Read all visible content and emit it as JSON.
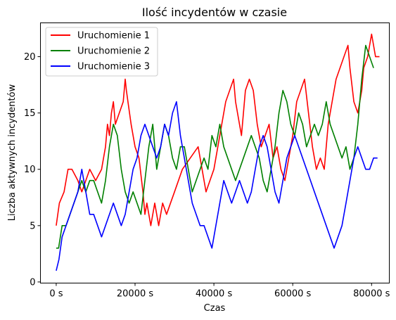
{
  "chart_data": {
    "type": "line",
    "title": "Ilość incydentów w czasie",
    "xlabel": "Czas",
    "ylabel": "Liczba aktywnych incydentów",
    "xlim": [
      -4000,
      84500
    ],
    "ylim": [
      -0.1,
      23
    ],
    "x_ticks": [
      0,
      20000,
      40000,
      60000,
      80000
    ],
    "x_tick_labels": [
      "0 s",
      "20000 s",
      "40000 s",
      "60000 s",
      "80000 s"
    ],
    "y_ticks": [
      0,
      5,
      10,
      15,
      20
    ],
    "y_tick_labels": [
      "0",
      "5",
      "10",
      "15",
      "20"
    ],
    "grid": false,
    "legend_position": "top-left",
    "series": [
      {
        "name": "Uruchomienie 1",
        "color": "#ff0000",
        "x": [
          0,
          800,
          2000,
          3000,
          4000,
          5500,
          6500,
          7500,
          8500,
          10000,
          11500,
          12500,
          13000,
          13500,
          14000,
          14500,
          15000,
          16000,
          17000,
          17500,
          17800,
          18200,
          19000,
          20000,
          21000,
          22000,
          22500,
          23000,
          24000,
          25000,
          26000,
          27000,
          28000,
          29000,
          30000,
          32000,
          34000,
          36000,
          37000,
          38000,
          39000,
          40000,
          41000,
          42000,
          43000,
          44000,
          45000,
          45500,
          46500,
          47000,
          48000,
          49000,
          50000,
          51000,
          52000,
          53000,
          54000,
          55000,
          56000,
          57000,
          58000,
          59000,
          60000,
          61000,
          62000,
          63000,
          64000,
          65000,
          66000,
          67000,
          68000,
          69000,
          70000,
          71000,
          72000,
          73000,
          74000,
          74500,
          75500,
          76500,
          77500,
          78000,
          79000,
          79500,
          80000,
          80500,
          81000,
          82000
        ],
        "y": [
          5,
          7,
          8,
          10,
          10,
          9,
          8,
          9,
          10,
          9,
          10,
          12,
          14,
          13,
          15,
          16,
          14,
          15,
          16,
          18,
          17,
          16,
          14,
          12,
          11,
          8,
          6,
          7,
          5,
          7,
          5,
          7,
          6,
          7,
          8,
          10,
          11,
          12,
          10,
          8,
          9,
          10,
          12,
          14,
          16,
          17,
          18,
          16,
          14,
          13,
          17,
          18,
          17,
          14,
          12,
          13,
          14,
          11,
          12,
          10,
          9,
          11,
          13,
          16,
          17,
          18,
          15,
          12,
          10,
          11,
          10,
          14,
          16,
          18,
          19,
          20,
          21,
          19,
          16,
          15,
          17,
          19,
          20,
          21,
          22,
          21,
          20,
          20
        ]
      },
      {
        "name": "Uruchomienie 2",
        "color": "#008000",
        "x": [
          0,
          600,
          1500,
          2500,
          3500,
          4500,
          5500,
          6500,
          7500,
          8500,
          9500,
          10500,
          11500,
          12500,
          13500,
          14500,
          15500,
          16500,
          17500,
          18500,
          19500,
          20500,
          21500,
          22500,
          23500,
          24500,
          25500,
          26500,
          27500,
          28500,
          29500,
          30500,
          31500,
          32500,
          33500,
          34500,
          35500,
          36500,
          37500,
          38500,
          39500,
          40500,
          41500,
          42500,
          43500,
          44500,
          45500,
          46500,
          47500,
          48500,
          49500,
          50500,
          51500,
          52500,
          53500,
          54500,
          55500,
          56500,
          57500,
          58500,
          59500,
          60500,
          61500,
          62500,
          63500,
          64500,
          65500,
          66500,
          67500,
          68500,
          69500,
          70500,
          71500,
          72500,
          73500,
          74500,
          75500,
          76500,
          77500,
          78500,
          79500,
          80500
        ],
        "y": [
          3,
          3,
          5,
          5,
          6,
          7,
          8,
          9,
          8,
          9,
          9,
          8,
          7,
          9,
          12,
          14,
          13,
          10,
          8,
          7,
          8,
          7,
          6,
          9,
          12,
          14,
          10,
          12,
          14,
          13,
          11,
          10,
          12,
          12,
          10,
          8,
          9,
          10,
          11,
          10,
          13,
          12,
          14,
          12,
          11,
          10,
          9,
          10,
          11,
          12,
          13,
          12,
          11,
          9,
          8,
          10,
          12,
          15,
          17,
          16,
          14,
          13,
          15,
          14,
          12,
          13,
          14,
          13,
          14,
          16,
          14,
          13,
          12,
          11,
          12,
          10,
          11,
          14,
          18,
          21,
          20,
          19
        ]
      },
      {
        "name": "Uruchomienie 3",
        "color": "#0000ff",
        "x": [
          0,
          700,
          1500,
          2500,
          3500,
          4500,
          5500,
          6500,
          7500,
          8500,
          9500,
          10500,
          11500,
          12500,
          13500,
          14500,
          15500,
          16500,
          17500,
          18500,
          19500,
          20500,
          21500,
          22500,
          23500,
          24500,
          25500,
          26500,
          27500,
          28500,
          29500,
          30500,
          31500,
          32500,
          33500,
          34500,
          35500,
          36500,
          37500,
          38500,
          39500,
          40500,
          41500,
          42500,
          43500,
          44500,
          45500,
          46500,
          47500,
          48500,
          49500,
          50500,
          51500,
          52500,
          53500,
          54500,
          55500,
          56500,
          57500,
          58500,
          59500,
          60500,
          61500,
          62500,
          63500,
          64500,
          65500,
          66500,
          67500,
          68500,
          69500,
          70500,
          71500,
          72500,
          73500,
          74500,
          75500,
          76500,
          77500,
          78500,
          79500,
          80500,
          81500
        ],
        "y": [
          1,
          2,
          4,
          5,
          6,
          7,
          8,
          10,
          8,
          6,
          6,
          5,
          4,
          5,
          6,
          7,
          6,
          5,
          6,
          8,
          10,
          11,
          13,
          14,
          13,
          12,
          11,
          12,
          14,
          13,
          15,
          16,
          13,
          11,
          9,
          7,
          6,
          5,
          5,
          4,
          3,
          5,
          7,
          9,
          8,
          7,
          8,
          9,
          8,
          7,
          8,
          10,
          12,
          13,
          12,
          10,
          8,
          7,
          9,
          11,
          12,
          13,
          12,
          11,
          10,
          9,
          8,
          7,
          6,
          5,
          4,
          3,
          4,
          5,
          7,
          9,
          11,
          12,
          11,
          10,
          10,
          11,
          11
        ]
      }
    ]
  }
}
